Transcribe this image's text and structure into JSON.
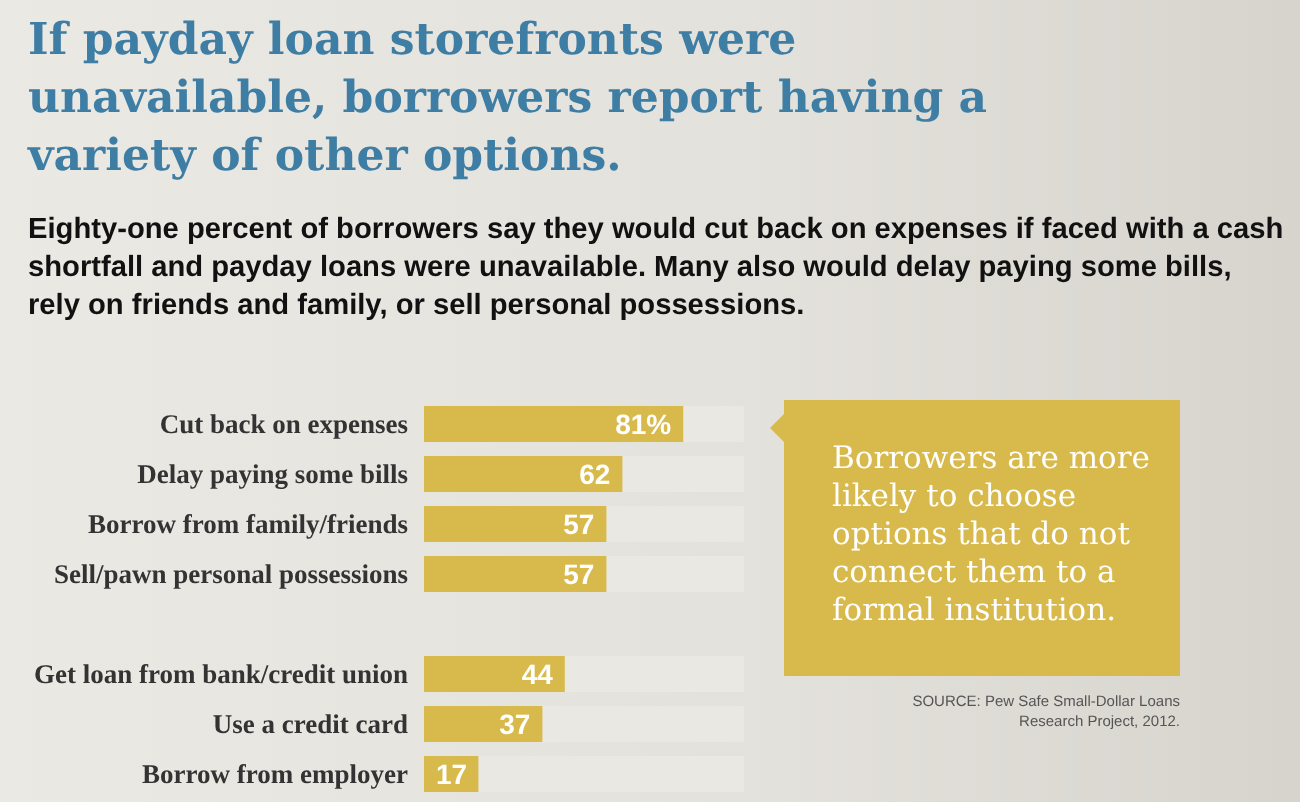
{
  "chart_data": {
    "type": "bar",
    "orientation": "horizontal",
    "title": "If payday loan storefronts were unavailable, borrowers report having a variety of other options.",
    "subtitle": "Eighty-one percent of borrowers say they would cut back on expenses if faced with a cash shortfall and payday loans were unavailable. Many also would delay paying some bills, rely on friends and family, or sell personal possessions.",
    "categories": [
      "Cut back on expenses",
      "Delay paying some bills",
      "Borrow from family/friends",
      "Sell/pawn personal possessions",
      null,
      "Get loan from bank/credit union",
      "Use a credit card",
      "Borrow from employer"
    ],
    "values": [
      81,
      62,
      57,
      57,
      null,
      44,
      37,
      17
    ],
    "value_labels": [
      "81%",
      "62",
      "57",
      "57",
      null,
      "44",
      "37",
      "17"
    ],
    "color": "#d8b94b",
    "xlim": [
      0,
      100
    ],
    "tick_labels": "y",
    "annotations": [
      "Borrowers are more likely to choose options that do not connect them to a formal institution.",
      "SOURCE: Pew Safe Small-Dollar Loans Research Project, 2012."
    ]
  }
}
